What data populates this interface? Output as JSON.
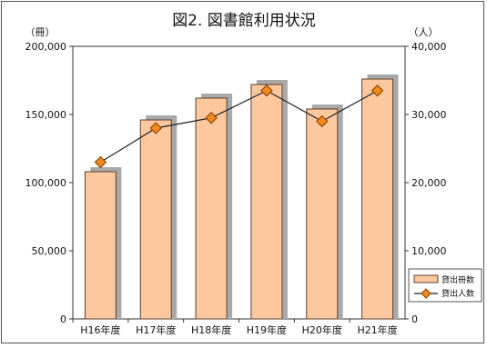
{
  "chart_data": {
    "type": "bar",
    "title": "図2. 図書館利用状況",
    "categories": [
      "H16年度",
      "H17年度",
      "H18年度",
      "H19年度",
      "H20年度",
      "H21年度"
    ],
    "series": [
      {
        "name": "貸出冊数",
        "type": "bar",
        "axis": "left",
        "values": [
          108000,
          146000,
          162000,
          172000,
          154000,
          176000
        ]
      },
      {
        "name": "貸出人数",
        "type": "line",
        "axis": "right",
        "values": [
          23000,
          28000,
          29500,
          33500,
          29000,
          33500
        ]
      }
    ],
    "left_axis": {
      "unit": "（冊）",
      "ylim": [
        0,
        200000
      ],
      "ticks": [
        "0",
        "50,000",
        "100,000",
        "150,000",
        "200,000"
      ]
    },
    "right_axis": {
      "unit": "（人）",
      "ylim": [
        0,
        40000
      ],
      "ticks": [
        "0",
        "10,000",
        "20,000",
        "30,000",
        "40,000"
      ]
    },
    "legend_position": "right",
    "grid": false,
    "colors": {
      "bar_fill": "#fdc89e",
      "bar_stroke": "#5a4030",
      "bar_shadow": "#a9a9a9",
      "line": "#222222",
      "marker": "#f08a1c",
      "marker_stroke": "#8a3c00"
    }
  }
}
